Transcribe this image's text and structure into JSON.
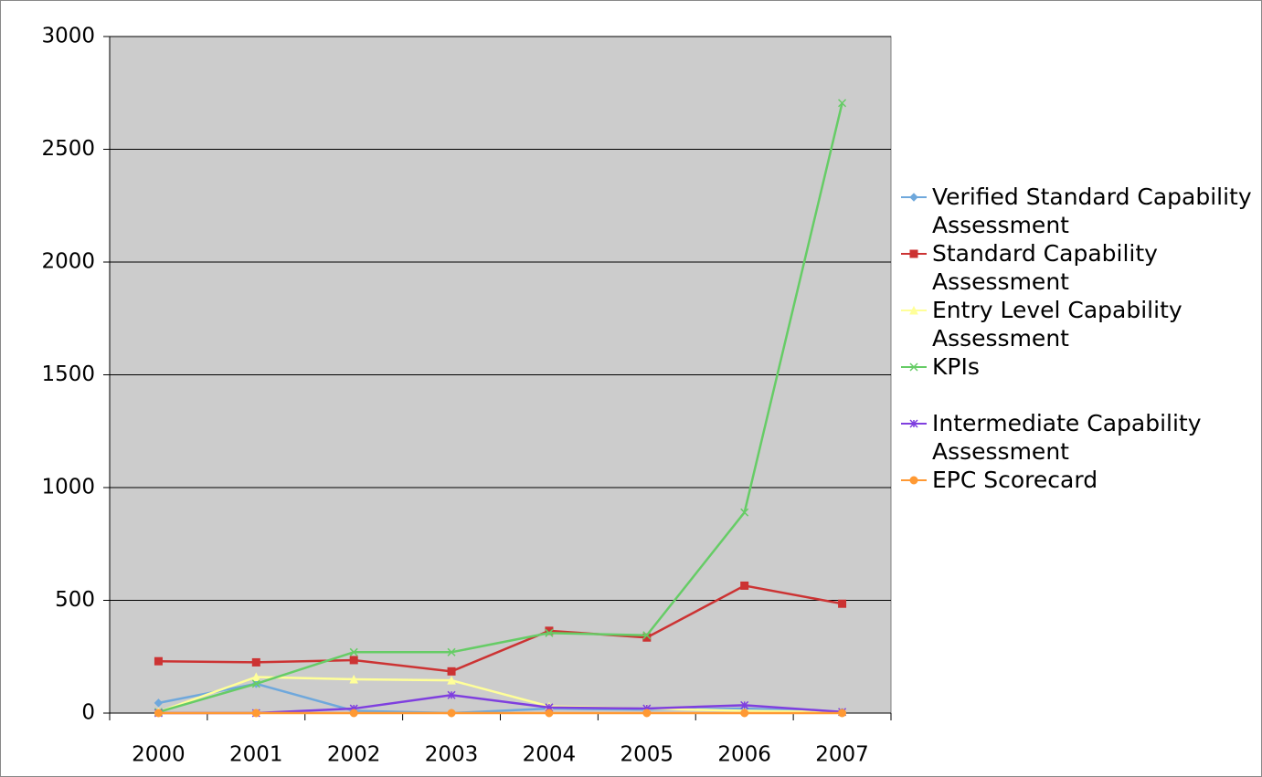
{
  "chart_data": {
    "type": "line",
    "categories": [
      "2000",
      "2001",
      "2002",
      "2003",
      "2004",
      "2005",
      "2006",
      "2007"
    ],
    "series": [
      {
        "name": "Verified Standard Capability Assessment",
        "color": "#6fa8dc",
        "marker": "diamond",
        "values": [
          45,
          130,
          10,
          0,
          20,
          15,
          20,
          5
        ]
      },
      {
        "name": "Standard Capability Assessment",
        "color": "#cc3333",
        "marker": "square",
        "values": [
          230,
          225,
          235,
          185,
          365,
          335,
          565,
          485
        ]
      },
      {
        "name": "Entry Level Capability Assessment",
        "color": "#ffff99",
        "marker": "triangle",
        "values": [
          5,
          160,
          150,
          145,
          30,
          20,
          10,
          5
        ]
      },
      {
        "name": "KPIs",
        "color": "#66cc66",
        "marker": "x",
        "values": [
          5,
          130,
          270,
          270,
          355,
          345,
          890,
          2705
        ]
      },
      {
        "name": "Intermediate Capability Assessment",
        "color": "#7f3fdf",
        "marker": "star",
        "values": [
          0,
          0,
          20,
          80,
          25,
          20,
          35,
          5
        ]
      },
      {
        "name": "EPC Scorecard",
        "color": "#ff9933",
        "marker": "circle",
        "values": [
          0,
          0,
          0,
          0,
          0,
          0,
          0,
          0
        ]
      }
    ],
    "ylim": [
      0,
      3000
    ],
    "yticks": [
      0,
      500,
      1000,
      1500,
      2000,
      2500,
      3000
    ],
    "grid": true,
    "legend": "right",
    "plot_background": "#cccccc"
  }
}
